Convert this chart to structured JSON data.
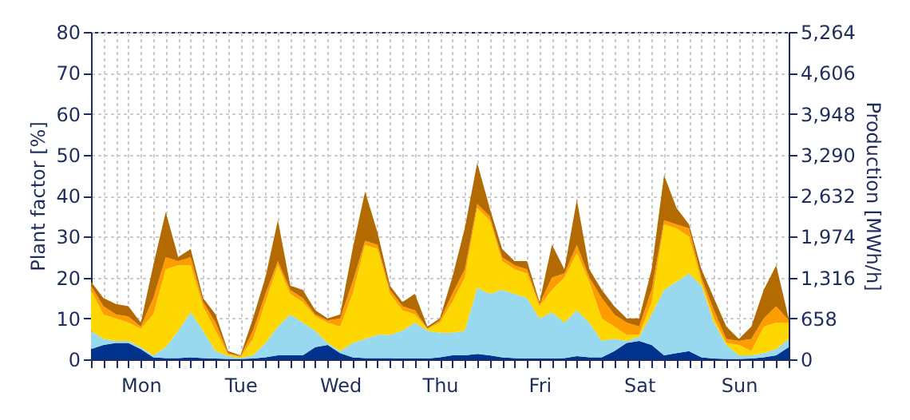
{
  "chart_data": {
    "type": "area",
    "stacked": true,
    "ylabel": "Plant factor [%]",
    "y2label": "Production [MWh/h]",
    "categories": [
      null,
      null,
      null,
      null,
      "Mon",
      null,
      null,
      null,
      null,
      null,
      null,
      null,
      "Tue",
      null,
      null,
      null,
      null,
      null,
      null,
      null,
      "Wed",
      null,
      null,
      null,
      null,
      null,
      null,
      null,
      "Thu",
      null,
      null,
      null,
      null,
      null,
      null,
      null,
      "Fri",
      null,
      null,
      null,
      null,
      null,
      null,
      null,
      "Sat",
      null,
      null,
      null,
      null,
      null,
      null,
      null,
      "Sun",
      null,
      null,
      null,
      null
    ],
    "ylim": [
      0,
      80
    ],
    "yticks": [
      0,
      10,
      20,
      30,
      40,
      50,
      60,
      70,
      80
    ],
    "y2lim": [
      0,
      5264
    ],
    "y2ticks": [
      0,
      658,
      {
        "value": 1316,
        "label": "1,316"
      },
      {
        "value": 1974,
        "label": "1,974"
      },
      {
        "value": 2632,
        "label": "2,632"
      },
      {
        "value": 3290,
        "label": "3,290"
      },
      {
        "value": 3948,
        "label": "3,948"
      },
      {
        "value": 4606,
        "label": "4,606"
      },
      {
        "value": 5264,
        "label": "5,264"
      }
    ],
    "grid": true,
    "series": [
      {
        "color": "#00338d",
        "values": [
          2.5,
          3.5,
          4,
          4,
          2.5,
          0.5,
          0.3,
          0.3,
          0.5,
          0.3,
          0.2,
          0.1,
          0.1,
          0.2,
          0.5,
          1,
          1,
          1,
          3,
          3.5,
          1.5,
          0.5,
          0.3,
          0.3,
          0.3,
          0.2,
          0.2,
          0.2,
          0.5,
          1,
          1,
          1.3,
          1,
          0.5,
          0.3,
          0.2,
          0.2,
          0.2,
          0.3,
          0.8,
          0.5,
          0.5,
          2,
          4,
          4.5,
          3.5,
          1,
          1.5,
          2,
          0.5,
          0.2,
          0.1,
          0.1,
          0.2,
          0.5,
          1,
          3
        ]
      },
      {
        "color": "#99d9f0",
        "values": [
          4.5,
          1.5,
          0.5,
          0.5,
          0.5,
          0.5,
          2.7,
          6.7,
          11,
          6.7,
          1.8,
          0.7,
          0.2,
          0.8,
          3.5,
          7,
          10,
          8,
          4,
          0.5,
          0.5,
          3.5,
          4.7,
          5.7,
          5.7,
          6.8,
          8.8,
          6.8,
          6,
          5.5,
          6,
          16.2,
          15,
          16.5,
          15.7,
          14.8,
          9.8,
          11.3,
          8.7,
          11.2,
          8.5,
          4,
          3,
          0.5,
          1,
          7.5,
          16,
          17.5,
          19,
          17.5,
          8.8,
          3.4,
          0.9,
          0.8,
          1,
          1.5,
          2
        ]
      },
      {
        "color": "#ffd700",
        "values": [
          10,
          6,
          5.5,
          4.5,
          4.5,
          10,
          19,
          16,
          11.5,
          6,
          5,
          0.4,
          0.3,
          4,
          10,
          15,
          5,
          5,
          3.5,
          5,
          6,
          12,
          23,
          21,
          10,
          5,
          2,
          0.5,
          2.5,
          7.5,
          13,
          19.5,
          18,
          7,
          6,
          6,
          3,
          5.5,
          11,
          14,
          10,
          5.5,
          3,
          1.5,
          0.5,
          3,
          16,
          13,
          9,
          1,
          1,
          0.5,
          2.5,
          1,
          6.5,
          6.5,
          4
        ]
      },
      {
        "color": "#ff9c00",
        "values": [
          1,
          2,
          1,
          1.5,
          0.5,
          4,
          3,
          1,
          2,
          1,
          2,
          0.3,
          0.2,
          2,
          2,
          1,
          1,
          1,
          0.5,
          0.5,
          2,
          3,
          1,
          1,
          1,
          1,
          1,
          0,
          0.5,
          2,
          2,
          1,
          1,
          1,
          1,
          1,
          0.5,
          3,
          1,
          2,
          1,
          5,
          3,
          3,
          2,
          3,
          1,
          1,
          2,
          1,
          2,
          1,
          1,
          3,
          2,
          4,
          0.5
        ]
      },
      {
        "color": "#b36a00",
        "values": [
          1,
          2,
          2.5,
          2.5,
          1,
          8,
          11,
          1,
          2,
          1,
          2,
          0.5,
          0.2,
          3,
          4,
          10,
          1,
          2,
          1,
          0.5,
          1,
          8,
          12,
          3,
          1,
          1,
          4,
          0.5,
          0.5,
          4,
          10,
          10,
          2,
          2,
          1,
          2,
          0.5,
          8,
          1,
          11,
          2,
          2,
          2,
          1,
          2,
          5,
          11,
          4,
          1,
          2,
          3,
          3,
          0.5,
          3,
          7,
          10,
          0.5
        ]
      }
    ]
  }
}
